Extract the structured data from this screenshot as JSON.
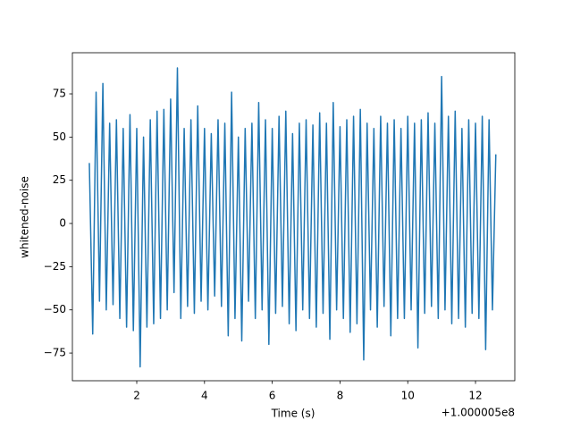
{
  "chart_data": {
    "type": "line",
    "x_label": "Time (s)",
    "y_label": "whitened-noise",
    "x_offset_label": "+1.000005e8",
    "xlim": [
      0.1,
      13.16
    ],
    "ylim": [
      -91,
      98.8
    ],
    "xticks": [
      2,
      4,
      6,
      8,
      10,
      12
    ],
    "yticks": [
      {
        "value": -75,
        "label": "−75"
      },
      {
        "value": -50,
        "label": "−50"
      },
      {
        "value": -25,
        "label": "−25"
      },
      0,
      25,
      50,
      75
    ],
    "grid": false,
    "series": [
      {
        "color": "#1f77b4",
        "x": [
          0.6,
          0.7,
          0.8,
          0.9,
          1.0,
          1.1,
          1.2,
          1.3,
          1.4,
          1.5,
          1.6,
          1.7,
          1.8,
          1.9,
          2.0,
          2.1,
          2.2,
          2.3,
          2.4,
          2.5,
          2.6,
          2.7,
          2.8,
          2.9,
          3.0,
          3.1,
          3.2,
          3.3,
          3.4,
          3.5,
          3.6,
          3.7,
          3.8,
          3.9,
          4.0,
          4.1,
          4.2,
          4.3,
          4.4,
          4.5,
          4.6,
          4.7,
          4.8,
          4.9,
          5.0,
          5.1,
          5.2,
          5.3,
          5.4,
          5.5,
          5.6,
          5.7,
          5.8,
          5.9,
          6.0,
          6.1,
          6.2,
          6.3,
          6.4,
          6.5,
          6.6,
          6.7,
          6.8,
          6.9,
          7.0,
          7.1,
          7.2,
          7.3,
          7.4,
          7.5,
          7.6,
          7.7,
          7.8,
          7.9,
          8.0,
          8.1,
          8.2,
          8.3,
          8.4,
          8.5,
          8.6,
          8.7,
          8.8,
          8.9,
          9.0,
          9.1,
          9.2,
          9.3,
          9.4,
          9.5,
          9.6,
          9.7,
          9.8,
          9.9,
          10.0,
          10.1,
          10.2,
          10.3,
          10.4,
          10.5,
          10.6,
          10.7,
          10.8,
          10.9,
          11.0,
          11.1,
          11.2,
          11.3,
          11.4,
          11.5,
          11.6,
          11.7,
          11.8,
          11.9,
          12.0,
          12.1,
          12.2,
          12.3,
          12.4,
          12.5,
          12.6
        ],
        "values": [
          35,
          -64,
          76,
          -45,
          81,
          -50,
          58,
          -47,
          60,
          -55,
          55,
          -60,
          63,
          -62,
          55,
          -83,
          50,
          -60,
          60,
          -58,
          65,
          -55,
          66,
          -50,
          72,
          -40,
          90,
          -55,
          55,
          -48,
          60,
          -52,
          68,
          -45,
          55,
          -50,
          52,
          -42,
          60,
          -48,
          58,
          -65,
          76,
          -55,
          50,
          -68,
          55,
          -45,
          58,
          -55,
          70,
          -50,
          60,
          -70,
          55,
          -52,
          62,
          -48,
          65,
          -58,
          52,
          -62,
          58,
          -50,
          60,
          -55,
          57,
          -60,
          64,
          -52,
          58,
          -67,
          70,
          -50,
          56,
          -55,
          60,
          -63,
          62,
          -58,
          66,
          -79,
          58,
          -50,
          55,
          -60,
          62,
          -48,
          58,
          -65,
          60,
          -55,
          55,
          -55,
          62,
          -50,
          58,
          -72,
          60,
          -52,
          64,
          -48,
          58,
          -55,
          85,
          -50,
          62,
          -58,
          65,
          -55,
          55,
          -60,
          60,
          -52,
          58,
          -55,
          62,
          -73,
          60,
          -50,
          40
        ]
      }
    ]
  }
}
